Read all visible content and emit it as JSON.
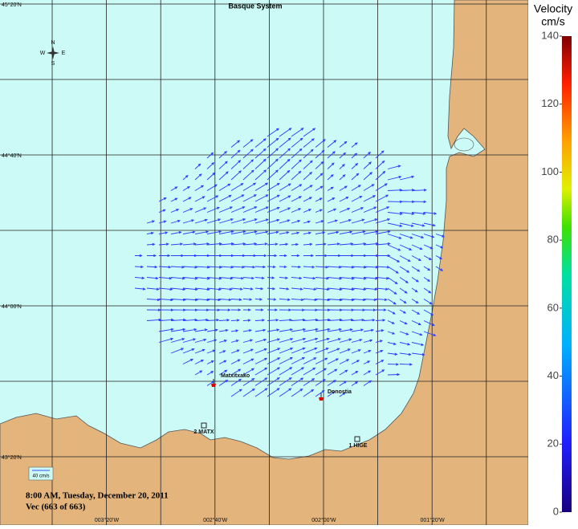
{
  "title": "Basque System",
  "latitude_labels": [
    "45°20'N",
    "44°40'N",
    "44°00'N",
    "43°20'N"
  ],
  "longitude_labels": [
    "003°20'W",
    "002°40'W",
    "002°00'W",
    "001°20'W"
  ],
  "compass": {
    "n": "N",
    "s": "S",
    "w": "W",
    "e": "E"
  },
  "stations": [
    {
      "label": "Matxitxako"
    },
    {
      "label": "Donostia"
    },
    {
      "label": "2 MATX"
    },
    {
      "label": "1 HIGE"
    }
  ],
  "scale_label": "40 cm/s",
  "timestamp": "8:00 AM, Tuesday, December 20, 2011",
  "vector_count": "Vec (663 of 663)",
  "colorbar": {
    "title": "Velocity",
    "unit": "cm/s",
    "range": [
      0,
      140
    ],
    "ticks": [
      0,
      20,
      40,
      60,
      80,
      100,
      120,
      140
    ]
  }
}
